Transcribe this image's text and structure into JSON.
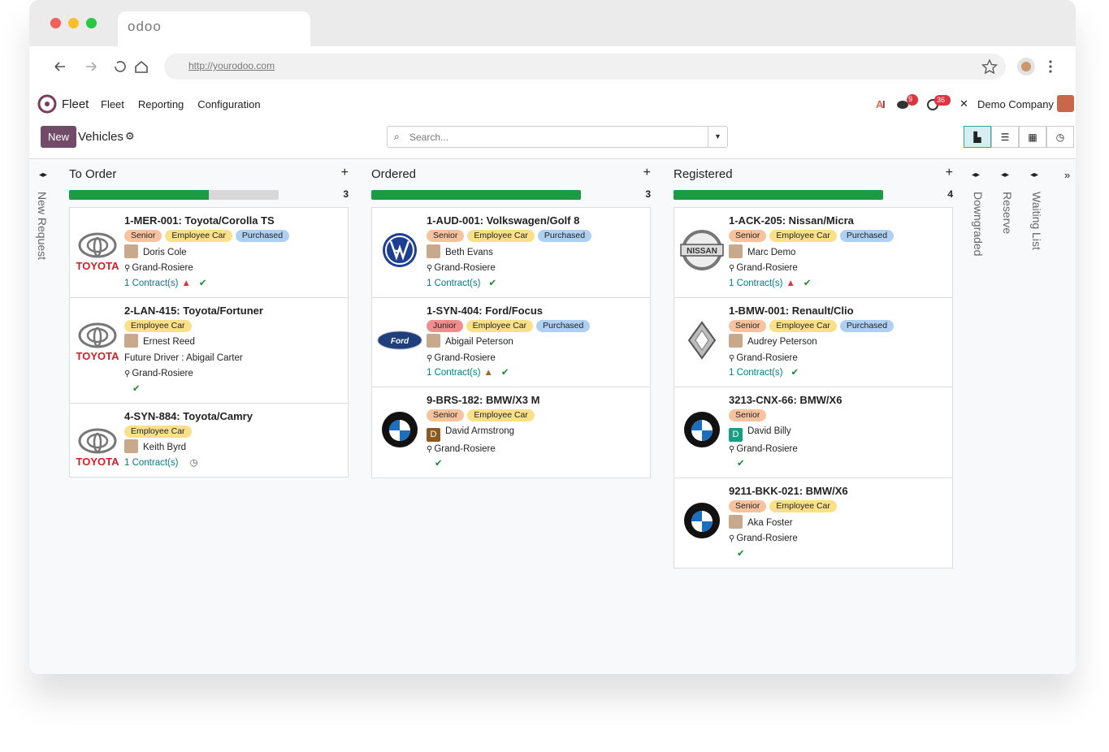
{
  "browser": {
    "tab_title": "odoo",
    "url": "http://yourodoo.com"
  },
  "navbar": {
    "app": "Fleet",
    "menus": [
      "Fleet",
      "Reporting",
      "Configuration"
    ],
    "messages_badge": "9",
    "activities_badge": "36",
    "company": "Demo Company"
  },
  "control_panel": {
    "new_button": "New",
    "title": "Vehicles",
    "search_placeholder": "Search..."
  },
  "folded_left": [
    "New Request"
  ],
  "folded_right": [
    "Downgraded",
    "Reserve",
    "Waiting List"
  ],
  "columns": [
    {
      "title": "To Order",
      "count": "3",
      "progress": [
        {
          "value": 2,
          "color": "#1a9c45"
        },
        {
          "value": 1,
          "color": "#d8d8d8"
        }
      ],
      "cards": [
        {
          "name": "1-MER-001: Toyota/Corolla TS",
          "logo": "toyota",
          "logo_text": "TOYOTA",
          "tags": [
            {
              "label": "Senior",
              "color": "#f7c39e"
            },
            {
              "label": "Employee Car",
              "color": "#fbe08a"
            },
            {
              "label": "Purchased",
              "color": "#aed0f2"
            }
          ],
          "driver": "Doris Cole",
          "location": "Grand-Rosiere",
          "contracts": "1 Contract(s)",
          "contract_alert": "#d9363e",
          "state": "check"
        },
        {
          "name": "2-LAN-415: Toyota/Fortuner",
          "logo": "toyota",
          "logo_text": "TOYOTA",
          "tags": [
            {
              "label": "Employee Car",
              "color": "#fbe08a"
            }
          ],
          "driver": "Ernest Reed",
          "future_driver": "Future Driver : Abigail Carter",
          "location": "Grand-Rosiere",
          "state": "check"
        },
        {
          "name": "4-SYN-884: Toyota/Camry",
          "logo": "toyota",
          "logo_text": "TOYOTA",
          "tags": [
            {
              "label": "Employee Car",
              "color": "#fbe08a"
            }
          ],
          "driver": "Keith Byrd",
          "contracts": "1 Contract(s)",
          "state": "clock"
        }
      ]
    },
    {
      "title": "Ordered",
      "count": "3",
      "progress": [
        {
          "value": 3,
          "color": "#1a9c45"
        }
      ],
      "cards": [
        {
          "name": "1-AUD-001: Volkswagen/Golf 8",
          "logo": "vw",
          "tags": [
            {
              "label": "Senior",
              "color": "#f7c39e"
            },
            {
              "label": "Employee Car",
              "color": "#fbe08a"
            },
            {
              "label": "Purchased",
              "color": "#aed0f2"
            }
          ],
          "driver": "Beth Evans",
          "location": "Grand-Rosiere",
          "contracts": "1 Contract(s)",
          "state": "check"
        },
        {
          "name": "1-SYN-404: Ford/Focus",
          "logo": "ford",
          "logo_text": "Ford",
          "tags": [
            {
              "label": "Junior",
              "color": "#f28d8d"
            },
            {
              "label": "Employee Car",
              "color": "#fbe08a"
            },
            {
              "label": "Purchased",
              "color": "#aed0f2"
            }
          ],
          "driver": "Abigail Peterson",
          "location": "Grand-Rosiere",
          "contracts": "1 Contract(s)",
          "contract_alert": "#9c6a21",
          "state": "check"
        },
        {
          "name": "9-BRS-182: BMW/X3 M",
          "logo": "bmw",
          "tags": [
            {
              "label": "Senior",
              "color": "#f7c39e"
            },
            {
              "label": "Employee Car",
              "color": "#fbe08a"
            }
          ],
          "driver": "David Armstrong",
          "avatar_initial": "D",
          "avatar_color": "#8b5a1e",
          "location": "Grand-Rosiere",
          "state": "check"
        }
      ]
    },
    {
      "title": "Registered",
      "count": "4",
      "progress": [
        {
          "value": 4,
          "color": "#1a9c45"
        }
      ],
      "cards": [
        {
          "name": "1-ACK-205: Nissan/Micra",
          "logo": "nissan",
          "logo_text": "NISSAN",
          "tags": [
            {
              "label": "Senior",
              "color": "#f7c39e"
            },
            {
              "label": "Employee Car",
              "color": "#fbe08a"
            },
            {
              "label": "Purchased",
              "color": "#aed0f2"
            }
          ],
          "driver": "Marc Demo",
          "location": "Grand-Rosiere",
          "contracts": "1 Contract(s)",
          "contract_alert": "#d9363e",
          "state": "check"
        },
        {
          "name": "1-BMW-001: Renault/Clio",
          "logo": "renault",
          "tags": [
            {
              "label": "Senior",
              "color": "#f7c39e"
            },
            {
              "label": "Employee Car",
              "color": "#fbe08a"
            },
            {
              "label": "Purchased",
              "color": "#aed0f2"
            }
          ],
          "driver": "Audrey Peterson",
          "location": "Grand-Rosiere",
          "contracts": "1 Contract(s)",
          "state": "check"
        },
        {
          "name": "3213-CNX-66: BMW/X6",
          "logo": "bmw",
          "tags": [
            {
              "label": "Senior",
              "color": "#f7c39e"
            }
          ],
          "driver": "David Billy",
          "avatar_initial": "D",
          "avatar_color": "#14a085",
          "location": "Grand-Rosiere",
          "state": "check"
        },
        {
          "name": "9211-BKK-021: BMW/X6",
          "logo": "bmw",
          "tags": [
            {
              "label": "Senior",
              "color": "#f7c39e"
            },
            {
              "label": "Employee Car",
              "color": "#fbe08a"
            }
          ],
          "driver": "Aka Foster",
          "location": "Grand-Rosiere",
          "state": "check"
        }
      ]
    }
  ]
}
